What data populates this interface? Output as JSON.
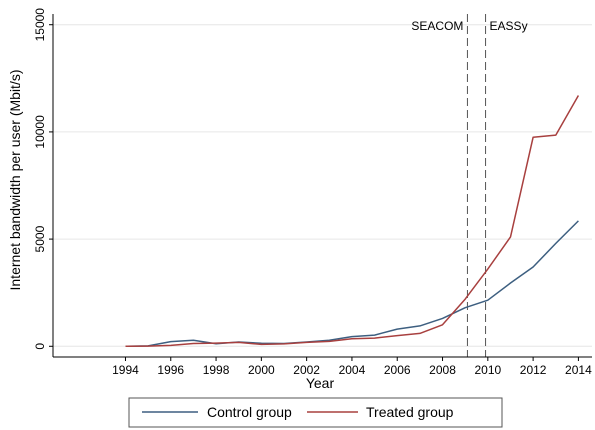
{
  "chart_data": {
    "type": "line",
    "xlabel": "Year",
    "ylabel": "Internet bandwidth per user (Mbit/s)",
    "xlim": [
      1990.8,
      2014.6
    ],
    "ylim": [
      -500,
      15500
    ],
    "x_ticks": [
      1994,
      1996,
      1998,
      2000,
      2002,
      2004,
      2006,
      2008,
      2010,
      2012,
      2014
    ],
    "x_tick_labels": [
      "1994",
      "1996",
      "1998",
      "2000",
      "2002",
      "2004",
      "2006",
      "2008",
      "2010",
      "2012",
      "2014"
    ],
    "y_ticks": [
      0,
      5000,
      10000,
      15000
    ],
    "y_tick_labels": [
      "0",
      "5000",
      "10000",
      "15000"
    ],
    "grid": "horizontal",
    "legend_placement": "bottom",
    "x": [
      1994,
      1995,
      1996,
      1997,
      1998,
      1999,
      2000,
      2001,
      2002,
      2003,
      2004,
      2005,
      2006,
      2007,
      2008,
      2009,
      2010,
      2011,
      2012,
      2013,
      2014
    ],
    "series": [
      {
        "name": "Control group",
        "color": "#3d5f80",
        "values": [
          0,
          20,
          220,
          280,
          120,
          200,
          140,
          130,
          200,
          280,
          450,
          520,
          800,
          950,
          1300,
          1800,
          2150,
          2950,
          3700,
          4800,
          5850
        ]
      },
      {
        "name": "Treated group",
        "color": "#a8403f",
        "values": [
          0,
          10,
          40,
          130,
          150,
          180,
          90,
          110,
          180,
          230,
          350,
          380,
          500,
          600,
          1000,
          2200,
          3600,
          5100,
          9750,
          9850,
          11700
        ]
      }
    ],
    "annotations": [
      {
        "label": "SEACOM",
        "x": 2009.1,
        "anchor": "left-of-line"
      },
      {
        "label": "EASSy",
        "x": 2009.9,
        "anchor": "right-of-line"
      }
    ]
  }
}
